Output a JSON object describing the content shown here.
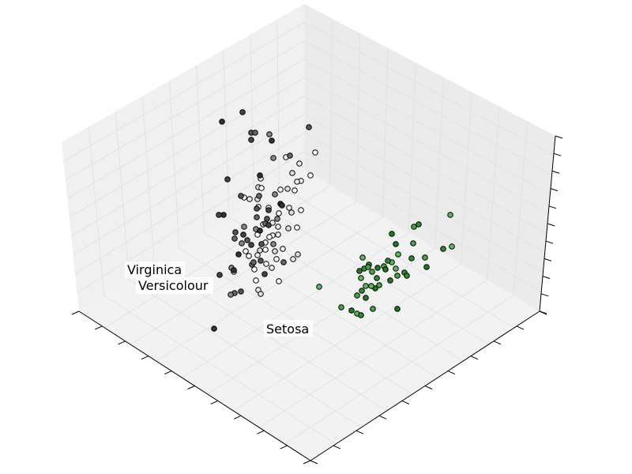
{
  "chart_data": {
    "type": "scatter",
    "projection": "3d",
    "title": "",
    "xlabel": "",
    "ylabel": "",
    "zlabel": "",
    "tick_labels_visible": false,
    "grid": true,
    "cluster_labels": [
      {
        "id": "virginica",
        "text": "Virginica"
      },
      {
        "id": "versicolour",
        "text": "Versicolour"
      },
      {
        "id": "setosa",
        "text": "Setosa"
      }
    ],
    "series": [
      {
        "id": "setosa",
        "colors": [
          "#5cb85c",
          "#2e8b2e",
          "#46a346",
          "#1f7a1f"
        ],
        "points": [
          [
            570,
            272
          ],
          [
            530,
            284
          ],
          [
            524,
            287
          ],
          [
            496,
            296
          ],
          [
            572,
            312
          ],
          [
            561,
            315
          ],
          [
            523,
            308
          ],
          [
            501,
            309
          ],
          [
            504,
            322
          ],
          [
            521,
            327
          ],
          [
            538,
            326
          ],
          [
            540,
            338
          ],
          [
            496,
            332
          ],
          [
            491,
            330
          ],
          [
            486,
            337
          ],
          [
            478,
            339
          ],
          [
            459,
            326
          ],
          [
            467,
            335
          ],
          [
            471,
            344
          ],
          [
            488,
            341
          ],
          [
            501,
            340
          ],
          [
            512,
            345
          ],
          [
            503,
            349
          ],
          [
            494,
            355
          ],
          [
            457,
            352
          ],
          [
            477,
            352
          ],
          [
            480,
            361
          ],
          [
            475,
            365
          ],
          [
            463,
            362
          ],
          [
            458,
            368
          ],
          [
            452,
            374
          ],
          [
            463,
            377
          ],
          [
            470,
            362
          ],
          [
            461,
            340
          ],
          [
            432,
            389
          ],
          [
            445,
            393
          ],
          [
            452,
            397
          ],
          [
            457,
            399
          ],
          [
            472,
            391
          ],
          [
            503,
            391
          ],
          [
            404,
            363
          ],
          [
            515,
            349
          ],
          [
            466,
            338
          ],
          [
            455,
            343
          ]
        ]
      },
      {
        "id": "versicolour",
        "colors": [
          "#ffffff",
          "#f4f4f4",
          "#eaeaea",
          "#dcdcdc"
        ],
        "points": [
          [
            399,
            193
          ],
          [
            362,
            199
          ],
          [
            379,
            207
          ],
          [
            370,
            219
          ],
          [
            393,
            222
          ],
          [
            381,
            229
          ],
          [
            376,
            230
          ],
          [
            364,
            239
          ],
          [
            355,
            240
          ],
          [
            373,
            241
          ],
          [
            330,
            226
          ],
          [
            327,
            237
          ],
          [
            331,
            238
          ],
          [
            309,
            250
          ],
          [
            316,
            252
          ],
          [
            326,
            252
          ],
          [
            327,
            262
          ],
          [
            340,
            263
          ],
          [
            366,
            263
          ],
          [
            369,
            269
          ],
          [
            381,
            266
          ],
          [
            345,
            282
          ],
          [
            352,
            287
          ],
          [
            333,
            284
          ],
          [
            326,
            297
          ],
          [
            345,
            298
          ],
          [
            352,
            297
          ],
          [
            365,
            289
          ],
          [
            376,
            288
          ],
          [
            336,
            307
          ],
          [
            358,
            315
          ],
          [
            348,
            318
          ],
          [
            311,
            318
          ],
          [
            315,
            324
          ],
          [
            326,
            323
          ],
          [
            329,
            317
          ],
          [
            336,
            316
          ],
          [
            350,
            328
          ],
          [
            371,
            328
          ],
          [
            377,
            322
          ],
          [
            322,
            341
          ],
          [
            337,
            334
          ],
          [
            344,
            339
          ],
          [
            296,
            344
          ],
          [
            324,
            355
          ],
          [
            353,
            356
          ],
          [
            327,
            367
          ],
          [
            330,
            372
          ],
          [
            341,
            300
          ],
          [
            353,
            270
          ]
        ]
      },
      {
        "id": "virginica",
        "colors": [
          "#333333",
          "#444444",
          "#555555",
          "#666666",
          "#888888"
        ],
        "points": [
          [
            281,
            154
          ],
          [
            307,
            142
          ],
          [
            318,
            168
          ],
          [
            323,
            168
          ],
          [
            341,
            170
          ],
          [
            344,
            178
          ],
          [
            318,
            177
          ],
          [
            391,
            161
          ],
          [
            367,
            197
          ],
          [
            346,
            200
          ],
          [
            329,
            222
          ],
          [
            288,
            227
          ],
          [
            305,
            248
          ],
          [
            328,
            248
          ],
          [
            348,
            246
          ],
          [
            355,
            258
          ],
          [
            340,
            266
          ],
          [
            325,
            264
          ],
          [
            325,
            275
          ],
          [
            309,
            287
          ],
          [
            283,
            272
          ],
          [
            277,
            272
          ],
          [
            338,
            277
          ],
          [
            336,
            283
          ],
          [
            324,
            290
          ],
          [
            329,
            292
          ],
          [
            308,
            297
          ],
          [
            298,
            294
          ],
          [
            297,
            302
          ],
          [
            306,
            308
          ],
          [
            302,
            322
          ],
          [
            318,
            310
          ],
          [
            331,
            309
          ],
          [
            319,
            335
          ],
          [
            293,
            339
          ],
          [
            296,
            342
          ],
          [
            278,
            348
          ],
          [
            305,
            369
          ],
          [
            297,
            371
          ],
          [
            292,
            373
          ],
          [
            271,
            416
          ],
          [
            335,
            347
          ],
          [
            330,
            330
          ],
          [
            359,
            332
          ],
          [
            346,
            309
          ],
          [
            357,
            260
          ],
          [
            340,
            285
          ],
          [
            313,
            304
          ],
          [
            321,
            332
          ],
          [
            351,
            277
          ]
        ]
      }
    ]
  }
}
